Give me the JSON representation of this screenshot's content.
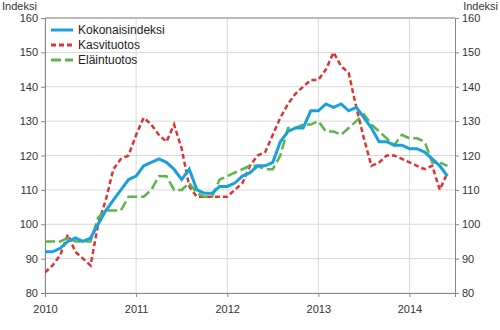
{
  "chart_data": {
    "type": "line",
    "y_label": "Indeksi",
    "y2_label": "Indeksi",
    "x": [
      2010,
      2010.083,
      2010.167,
      2010.25,
      2010.333,
      2010.417,
      2010.5,
      2010.583,
      2010.667,
      2010.75,
      2010.833,
      2010.917,
      2011,
      2011.083,
      2011.167,
      2011.25,
      2011.333,
      2011.417,
      2011.5,
      2011.583,
      2011.667,
      2011.75,
      2011.833,
      2011.917,
      2012,
      2012.083,
      2012.167,
      2012.25,
      2012.333,
      2012.417,
      2012.5,
      2012.583,
      2012.667,
      2012.75,
      2012.833,
      2012.917,
      2013,
      2013.083,
      2013.167,
      2013.25,
      2013.333,
      2013.417,
      2013.5,
      2013.583,
      2013.667,
      2013.75,
      2013.833,
      2013.917,
      2014,
      2014.083,
      2014.167,
      2014.25,
      2014.333,
      2014.417
    ],
    "series": [
      {
        "name": "Kokonaisindeksi",
        "color": "#1aa0dd",
        "line_style": "solid",
        "values": [
          92,
          92,
          93,
          95,
          96,
          95,
          96,
          100,
          104,
          107,
          110,
          113,
          114,
          117,
          118,
          119,
          118,
          116,
          113,
          116,
          110,
          109,
          109,
          111,
          111,
          112,
          114,
          115,
          117,
          117,
          118,
          124,
          127,
          128,
          128,
          133,
          133,
          135,
          134,
          135,
          133,
          134,
          131,
          128,
          124,
          124,
          123,
          123,
          122,
          122,
          121,
          119,
          117,
          114
        ]
      },
      {
        "name": "Kasvituotos",
        "color": "#e03232",
        "line_style": "dashed",
        "values": [
          86,
          88,
          91,
          97,
          92,
          90,
          88,
          100,
          107,
          116,
          119,
          120,
          126,
          131,
          129,
          126,
          124,
          129,
          122,
          111,
          108,
          108,
          108,
          108,
          108,
          110,
          112,
          117,
          120,
          121,
          126,
          131,
          135,
          138,
          140,
          142,
          142,
          145,
          150,
          146,
          144,
          134,
          125,
          117,
          118,
          120,
          120,
          119,
          118,
          117,
          116,
          117,
          110,
          115
        ]
      },
      {
        "name": "Eläintuotos",
        "color": "#5cb547",
        "line_style": "longdash",
        "values": [
          95,
          95,
          95,
          96,
          95,
          95,
          95,
          102,
          104,
          104,
          104,
          108,
          108,
          108,
          110,
          114,
          114,
          110,
          110,
          112,
          109,
          108,
          108,
          113,
          114,
          115,
          116,
          117,
          117,
          116,
          116,
          120,
          128,
          128,
          129,
          129,
          130,
          127,
          127,
          126,
          128,
          130,
          132,
          129,
          127,
          125,
          123,
          126,
          125,
          125,
          124,
          118,
          118,
          117
        ]
      }
    ],
    "xlim": [
      2010,
      2014.5
    ],
    "xticks": [
      2010,
      2011,
      2012,
      2013,
      2014
    ],
    "ylim": [
      80,
      160
    ],
    "yticks": [
      80,
      90,
      100,
      110,
      120,
      130,
      140,
      150,
      160
    ],
    "y2lim": [
      80,
      160
    ],
    "y2ticks": [
      80,
      90,
      100,
      110,
      120,
      130,
      140,
      150,
      160
    ],
    "grid": true,
    "legend": "top-left"
  }
}
